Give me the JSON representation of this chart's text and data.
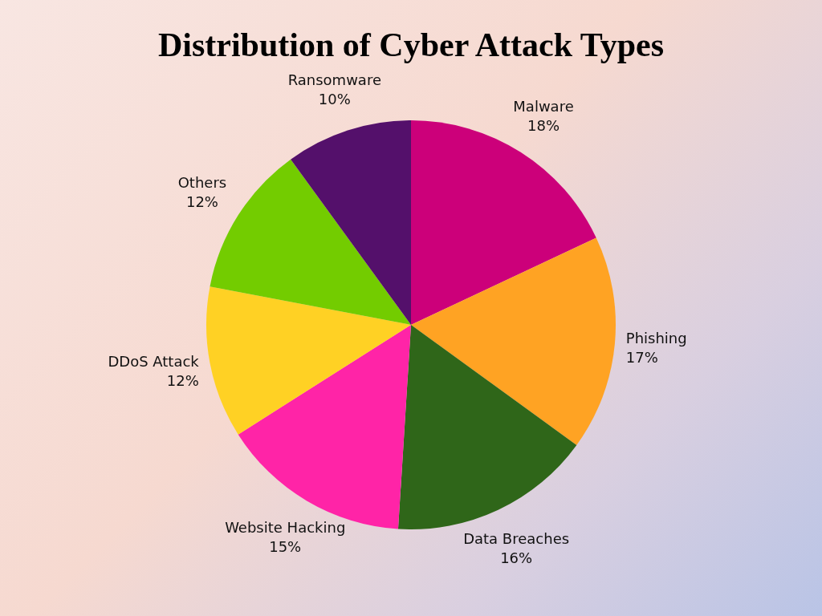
{
  "chart_data": {
    "type": "pie",
    "title": "Distribution of Cyber Attack Types",
    "categories": [
      "Malware",
      "Phishing",
      "Data Breaches",
      "Website Hacking",
      "DDoS Attack",
      "Others",
      "Ransomware"
    ],
    "values": [
      18,
      17,
      16,
      15,
      12,
      12,
      10
    ],
    "colors": [
      "#cc007a",
      "#ffa323",
      "#2f6619",
      "#ff24a7",
      "#ffd124",
      "#73cc00",
      "#54106b"
    ],
    "value_labels": [
      "18%",
      "17%",
      "16%",
      "15%",
      "12%",
      "12%",
      "10%"
    ]
  }
}
